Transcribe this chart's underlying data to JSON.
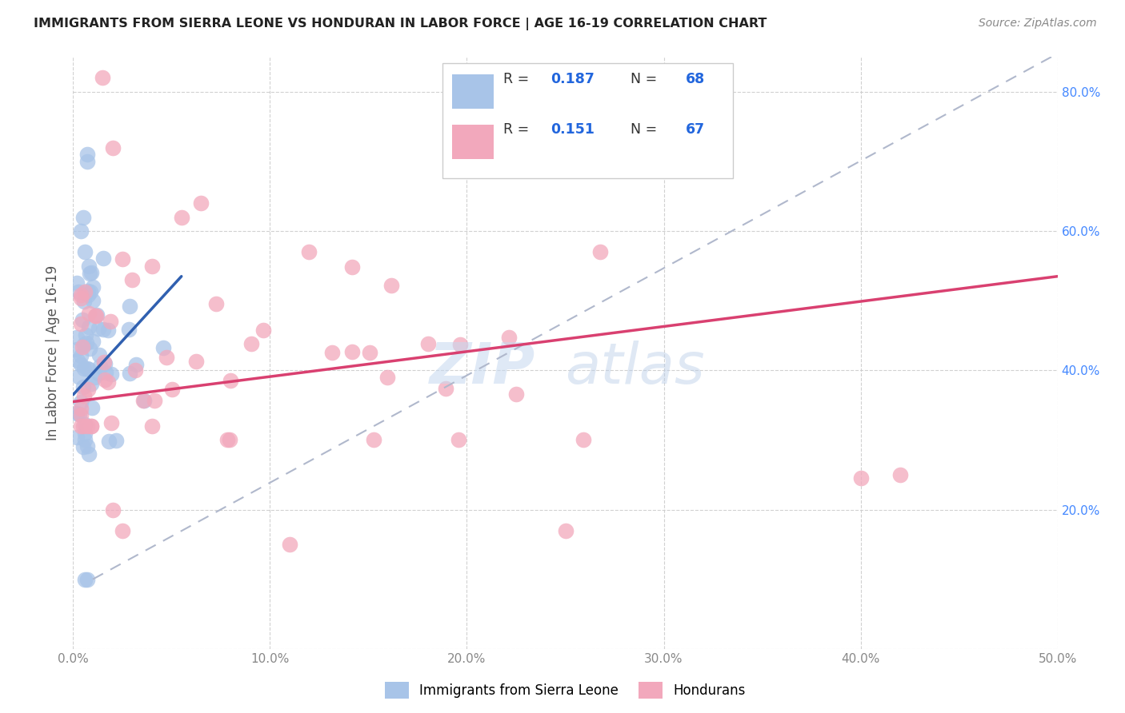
{
  "title": "IMMIGRANTS FROM SIERRA LEONE VS HONDURAN IN LABOR FORCE | AGE 16-19 CORRELATION CHART",
  "source": "Source: ZipAtlas.com",
  "ylabel": "In Labor Force | Age 16-19",
  "xlim": [
    0.0,
    0.5
  ],
  "ylim": [
    0.0,
    0.85
  ],
  "xticks": [
    0.0,
    0.1,
    0.2,
    0.3,
    0.4,
    0.5
  ],
  "yticks": [
    0.0,
    0.2,
    0.4,
    0.6,
    0.8
  ],
  "xticklabels": [
    "0.0%",
    "10.0%",
    "20.0%",
    "30.0%",
    "40.0%",
    "50.0%"
  ],
  "yticklabels_right": [
    "",
    "20.0%",
    "40.0%",
    "60.0%",
    "80.0%"
  ],
  "legend_r1": "0.187",
  "legend_n1": "68",
  "legend_r2": "0.151",
  "legend_n2": "67",
  "blue_color": "#a8c4e8",
  "pink_color": "#f2a8bc",
  "blue_line_color": "#3060b0",
  "pink_line_color": "#d94070",
  "dashed_line_color": "#b0b8cc",
  "watermark_zip": "ZIP",
  "watermark_atlas": "atlas",
  "blue_line_x": [
    0.0,
    0.055
  ],
  "blue_line_y": [
    0.365,
    0.535
  ],
  "pink_line_x": [
    0.0,
    0.5
  ],
  "pink_line_y": [
    0.355,
    0.535
  ],
  "dash_line_x": [
    0.01,
    0.5
  ],
  "dash_line_y": [
    0.1,
    0.855
  ]
}
